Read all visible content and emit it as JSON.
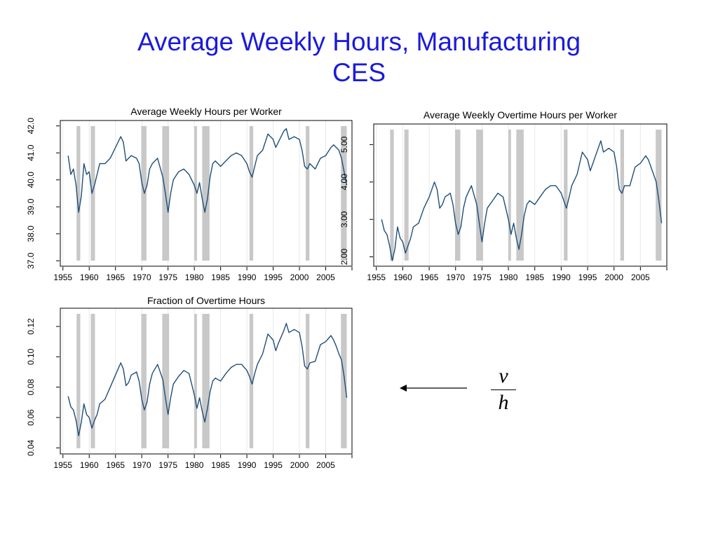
{
  "slide": {
    "title_line1": "Average Weekly Hours, Manufacturing",
    "title_line2": "CES",
    "fraction_numerator": "v",
    "fraction_denominator": "h"
  },
  "colors": {
    "series": "#1f4e79",
    "recession": "#c8c8c8",
    "title": "#1a1adc",
    "grid": "#e8e8e8"
  },
  "recessions": [
    [
      1957.6,
      1958.3
    ],
    [
      1960.3,
      1961.1
    ],
    [
      1969.9,
      1970.9
    ],
    [
      1973.9,
      1975.2
    ],
    [
      1980.0,
      1980.5
    ],
    [
      1981.5,
      1982.9
    ],
    [
      1990.5,
      1991.2
    ],
    [
      2001.2,
      2001.9
    ],
    [
      2007.9,
      2009.0
    ]
  ],
  "chart_data": [
    {
      "type": "line",
      "title": "Average Weekly Hours per Worker",
      "xlabel": "",
      "ylabel": "",
      "xlim": [
        1954.5,
        2010
      ],
      "ylim": [
        36.8,
        42.2
      ],
      "xticks": [
        "1955",
        "1960",
        "1965",
        "1970",
        "1975",
        "1980",
        "1985",
        "1990",
        "1995",
        "2000",
        "2005"
      ],
      "yticks": [
        "37.0",
        "38.0",
        "39.0",
        "40.0",
        "41.0",
        "42.0"
      ],
      "series": [
        {
          "x": [
            1956.0,
            1956.5,
            1957.0,
            1957.5,
            1958.0,
            1958.5,
            1959.0,
            1959.5,
            1960.0,
            1960.5,
            1961.0,
            1961.5,
            1962.0,
            1963.0,
            1964.0,
            1965.0,
            1966.0,
            1966.5,
            1967.0,
            1967.5,
            1968.0,
            1969.0,
            1969.5,
            1970.0,
            1970.5,
            1971.0,
            1971.5,
            1972.0,
            1973.0,
            1974.0,
            1974.5,
            1975.0,
            1975.5,
            1976.0,
            1977.0,
            1978.0,
            1979.0,
            1980.0,
            1980.5,
            1981.0,
            1981.5,
            1982.0,
            1982.5,
            1983.0,
            1983.5,
            1984.0,
            1985.0,
            1986.0,
            1987.0,
            1988.0,
            1989.0,
            1990.0,
            1990.5,
            1991.0,
            1991.5,
            1992.0,
            1993.0,
            1994.0,
            1995.0,
            1995.5,
            1996.0,
            1997.0,
            1997.5,
            1998.0,
            1999.0,
            2000.0,
            2000.5,
            2001.0,
            2001.5,
            2002.0,
            2003.0,
            2004.0,
            2005.0,
            2006.0,
            2006.5,
            2007.0,
            2007.5,
            2008.0,
            2008.5,
            2009.0
          ],
          "values": [
            40.9,
            40.2,
            40.4,
            39.8,
            38.8,
            39.4,
            40.6,
            40.2,
            40.3,
            39.5,
            39.8,
            40.2,
            40.6,
            40.6,
            40.8,
            41.2,
            41.6,
            41.4,
            40.7,
            40.8,
            40.9,
            40.8,
            40.6,
            39.9,
            39.5,
            39.8,
            40.4,
            40.6,
            40.8,
            40.1,
            39.5,
            38.8,
            39.5,
            40.0,
            40.3,
            40.4,
            40.2,
            39.8,
            39.5,
            39.9,
            39.3,
            38.8,
            39.3,
            40.1,
            40.6,
            40.7,
            40.5,
            40.7,
            40.9,
            41.0,
            40.9,
            40.6,
            40.3,
            40.1,
            40.5,
            40.9,
            41.1,
            41.7,
            41.5,
            41.2,
            41.4,
            41.8,
            41.9,
            41.5,
            41.6,
            41.5,
            41.1,
            40.5,
            40.4,
            40.6,
            40.4,
            40.8,
            40.9,
            41.2,
            41.3,
            41.2,
            41.1,
            40.8,
            40.3,
            39.8
          ]
        }
      ]
    },
    {
      "type": "line",
      "title": "Average Weekly Overtime Hours per Worker",
      "xlabel": "",
      "ylabel": "",
      "xlim": [
        1954.5,
        2010
      ],
      "ylim": [
        1.75,
        5.55
      ],
      "xticks": [
        "1955",
        "1960",
        "1965",
        "1970",
        "1975",
        "1980",
        "1985",
        "1990",
        "1995",
        "2000",
        "2005"
      ],
      "yticks": [
        "2.00",
        "3.00",
        "4.00",
        "5.00"
      ],
      "series": [
        {
          "x": [
            1956.0,
            1956.5,
            1957.0,
            1957.5,
            1958.0,
            1958.5,
            1959.0,
            1959.5,
            1960.0,
            1960.5,
            1961.0,
            1961.5,
            1962.0,
            1963.0,
            1964.0,
            1965.0,
            1966.0,
            1966.5,
            1967.0,
            1967.5,
            1968.0,
            1969.0,
            1969.5,
            1970.0,
            1970.5,
            1971.0,
            1971.5,
            1972.0,
            1973.0,
            1974.0,
            1974.5,
            1975.0,
            1975.5,
            1976.0,
            1977.0,
            1978.0,
            1979.0,
            1980.0,
            1980.5,
            1981.0,
            1981.5,
            1982.0,
            1982.5,
            1983.0,
            1983.5,
            1984.0,
            1985.0,
            1986.0,
            1987.0,
            1988.0,
            1989.0,
            1990.0,
            1990.5,
            1991.0,
            1991.5,
            1992.0,
            1993.0,
            1994.0,
            1995.0,
            1995.5,
            1996.0,
            1997.0,
            1997.5,
            1998.0,
            1999.0,
            2000.0,
            2000.5,
            2001.0,
            2001.5,
            2002.0,
            2003.0,
            2004.0,
            2005.0,
            2006.0,
            2006.5,
            2007.0,
            2007.5,
            2008.0,
            2008.5,
            2009.0
          ],
          "values": [
            3.0,
            2.7,
            2.6,
            2.3,
            1.9,
            2.2,
            2.8,
            2.5,
            2.4,
            2.1,
            2.3,
            2.5,
            2.8,
            2.9,
            3.3,
            3.6,
            4.0,
            3.8,
            3.3,
            3.4,
            3.6,
            3.7,
            3.4,
            2.9,
            2.6,
            2.8,
            3.3,
            3.6,
            3.9,
            3.4,
            2.9,
            2.4,
            2.9,
            3.3,
            3.5,
            3.7,
            3.6,
            3.0,
            2.6,
            2.9,
            2.5,
            2.2,
            2.6,
            3.1,
            3.4,
            3.5,
            3.4,
            3.6,
            3.8,
            3.9,
            3.9,
            3.7,
            3.5,
            3.3,
            3.6,
            3.9,
            4.2,
            4.8,
            4.6,
            4.3,
            4.5,
            4.9,
            5.1,
            4.8,
            4.9,
            4.8,
            4.4,
            3.8,
            3.7,
            3.9,
            3.9,
            4.4,
            4.5,
            4.7,
            4.6,
            4.4,
            4.2,
            4.0,
            3.5,
            2.9
          ]
        }
      ]
    },
    {
      "type": "line",
      "title": "Fraction of Overtime Hours",
      "xlabel": "",
      "ylabel": "",
      "xlim": [
        1954.5,
        2010
      ],
      "ylim": [
        0.036,
        0.132
      ],
      "xticks": [
        "1955",
        "1960",
        "1965",
        "1970",
        "1975",
        "1980",
        "1985",
        "1990",
        "1995",
        "2000",
        "2005"
      ],
      "yticks": [
        "0.04",
        "0.06",
        "0.08",
        "0.10",
        "0.12"
      ],
      "series": [
        {
          "x": [
            1956.0,
            1956.5,
            1957.0,
            1957.5,
            1958.0,
            1958.5,
            1959.0,
            1959.5,
            1960.0,
            1960.5,
            1961.0,
            1961.5,
            1962.0,
            1963.0,
            1964.0,
            1965.0,
            1966.0,
            1966.5,
            1967.0,
            1967.5,
            1968.0,
            1969.0,
            1969.5,
            1970.0,
            1970.5,
            1971.0,
            1971.5,
            1972.0,
            1973.0,
            1974.0,
            1974.5,
            1975.0,
            1975.5,
            1976.0,
            1977.0,
            1978.0,
            1979.0,
            1980.0,
            1980.5,
            1981.0,
            1981.5,
            1982.0,
            1982.5,
            1983.0,
            1983.5,
            1984.0,
            1985.0,
            1986.0,
            1987.0,
            1988.0,
            1989.0,
            1990.0,
            1990.5,
            1991.0,
            1991.5,
            1992.0,
            1993.0,
            1994.0,
            1995.0,
            1995.5,
            1996.0,
            1997.0,
            1997.5,
            1998.0,
            1999.0,
            2000.0,
            2000.5,
            2001.0,
            2001.5,
            2002.0,
            2003.0,
            2004.0,
            2005.0,
            2006.0,
            2006.5,
            2007.0,
            2007.5,
            2008.0,
            2008.5,
            2009.0
          ],
          "values": [
            0.074,
            0.067,
            0.065,
            0.058,
            0.048,
            0.057,
            0.069,
            0.062,
            0.06,
            0.053,
            0.058,
            0.062,
            0.069,
            0.072,
            0.08,
            0.088,
            0.096,
            0.092,
            0.081,
            0.083,
            0.088,
            0.09,
            0.084,
            0.072,
            0.065,
            0.07,
            0.082,
            0.089,
            0.095,
            0.085,
            0.073,
            0.062,
            0.073,
            0.082,
            0.087,
            0.091,
            0.089,
            0.075,
            0.066,
            0.073,
            0.064,
            0.057,
            0.066,
            0.077,
            0.084,
            0.086,
            0.084,
            0.089,
            0.093,
            0.095,
            0.095,
            0.091,
            0.087,
            0.082,
            0.089,
            0.095,
            0.102,
            0.115,
            0.111,
            0.104,
            0.109,
            0.117,
            0.122,
            0.116,
            0.118,
            0.116,
            0.107,
            0.094,
            0.092,
            0.096,
            0.097,
            0.108,
            0.11,
            0.114,
            0.111,
            0.107,
            0.102,
            0.098,
            0.087,
            0.073
          ]
        }
      ]
    }
  ]
}
